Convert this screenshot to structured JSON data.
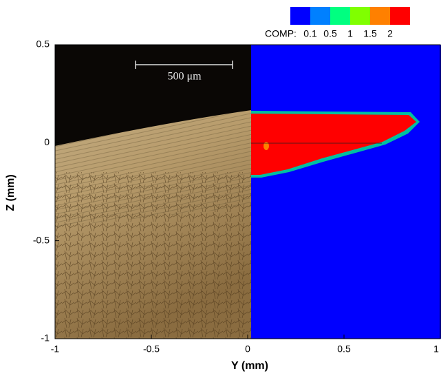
{
  "chart_data": {
    "type": "contour",
    "xlabel": "Y (mm)",
    "ylabel": "Z (mm)",
    "xlim": [
      -1,
      1
    ],
    "ylim": [
      -1,
      0.5
    ],
    "xticks": [
      -1,
      -0.5,
      0,
      0.5,
      1
    ],
    "yticks": [
      -1,
      -0.5,
      0,
      0.5
    ],
    "colorbar": {
      "label": "COMP:",
      "levels": [
        0.1,
        0.5,
        1,
        1.5,
        2
      ],
      "colors": [
        "#0000ff",
        "#0080ff",
        "#00ff80",
        "#80ff00",
        "#ff8000",
        "#ff0000"
      ]
    },
    "scale_bar": "500 μm"
  }
}
